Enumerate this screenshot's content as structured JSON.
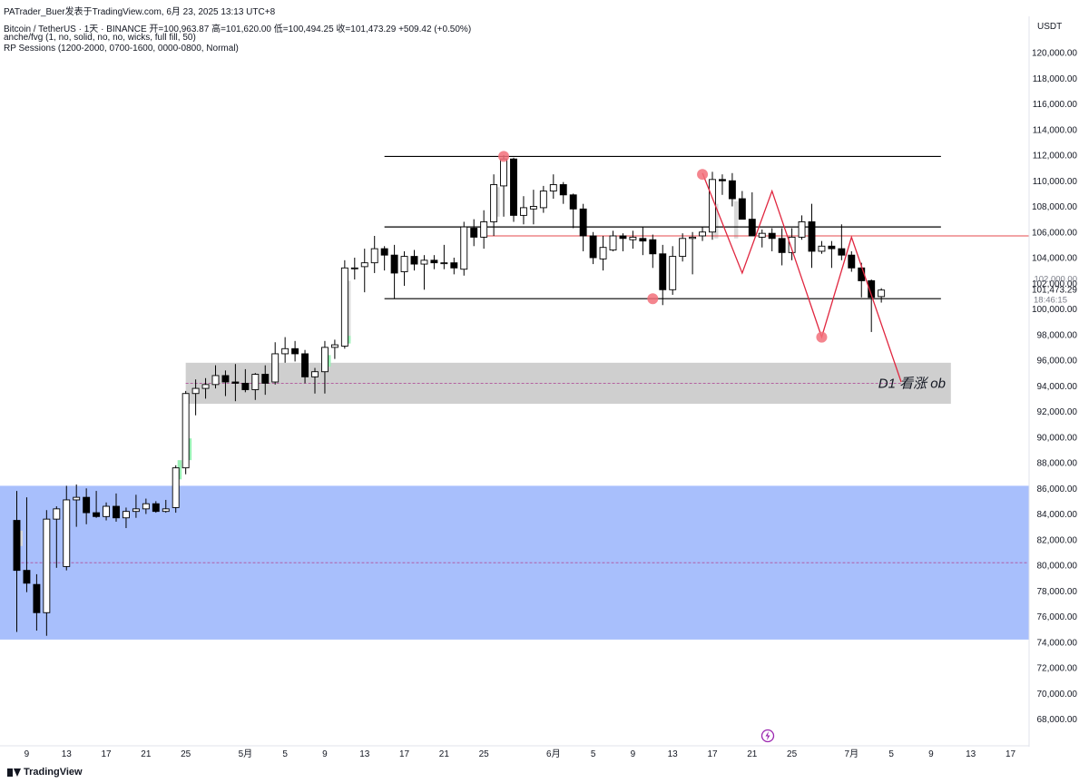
{
  "header": {
    "watermark": "PATrader_Buer发表于TradingView.com,   6月 23, 2025 13:13 UTC+8",
    "symbol_line": "Bitcoin / TetherUS · 1天 · BINANCE  开=100,963.87  高=101,620.00  低=100,494.25  收=101,473.29  +509.42 (+0.50%)",
    "indicator1": "anche/fvg (1, no, solid, no, no, wicks, full fill, 50)",
    "indicator2": "RP Sessions (1200-2000, 0700-1600, 0000-0800, Normal)"
  },
  "currency": "USDT",
  "footer": {
    "brand": "TradingView"
  },
  "colors": {
    "up_body": "#ffffff",
    "down_body": "#000000",
    "line": "#000000",
    "red_line": "#e5484d",
    "zigzag": "#e0263f",
    "marker": "#f2707a",
    "blue_zone": "#a8bffc",
    "gray_zone": "#cfcfcf",
    "fvg_green": "#98f0b4",
    "fvg_gray": "#d8d8d8",
    "price_label": "#131722"
  },
  "chart_data": {
    "type": "candlestick",
    "ylim": [
      66000,
      122000
    ],
    "y_ticks": [
      68000,
      70000,
      72000,
      74000,
      76000,
      78000,
      80000,
      82000,
      84000,
      86000,
      88000,
      90000,
      92000,
      94000,
      96000,
      98000,
      100000,
      102000,
      104000,
      106000,
      108000,
      110000,
      112000,
      114000,
      116000,
      118000,
      120000
    ],
    "y_tick_labels": [
      "68,000.00",
      "70,000.00",
      "72,000.00",
      "74,000.00",
      "76,000.00",
      "78,000.00",
      "80,000.00",
      "82,000.00",
      "84,000.00",
      "86,000.00",
      "88,000.00",
      "90,000.00",
      "92,000.00",
      "94,000.00",
      "96,000.00",
      "98,000.00",
      "100,000.00",
      "102,000.00",
      "104,000.00",
      "106,000.00",
      "108,000.00",
      "110,000.00",
      "112,000.00",
      "114,000.00",
      "116,000.00",
      "118,000.00",
      "120,000.00"
    ],
    "x_ticks": [
      {
        "label": "9",
        "day": 1
      },
      {
        "label": "13",
        "day": 5
      },
      {
        "label": "17",
        "day": 9
      },
      {
        "label": "21",
        "day": 13
      },
      {
        "label": "25",
        "day": 17
      },
      {
        "label": "5月",
        "day": 23
      },
      {
        "label": "5",
        "day": 27
      },
      {
        "label": "9",
        "day": 31
      },
      {
        "label": "13",
        "day": 35
      },
      {
        "label": "17",
        "day": 39
      },
      {
        "label": "21",
        "day": 43
      },
      {
        "label": "25",
        "day": 47
      },
      {
        "label": "6月",
        "day": 54
      },
      {
        "label": "5",
        "day": 58
      },
      {
        "label": "9",
        "day": 62
      },
      {
        "label": "13",
        "day": 66
      },
      {
        "label": "17",
        "day": 70
      },
      {
        "label": "21",
        "day": 74
      },
      {
        "label": "25",
        "day": 78
      },
      {
        "label": "7月",
        "day": 84
      },
      {
        "label": "5",
        "day": 88
      },
      {
        "label": "9",
        "day": 92
      },
      {
        "label": "13",
        "day": 96
      },
      {
        "label": "17",
        "day": 100
      }
    ],
    "candles": [
      [
        83500,
        85800,
        74800,
        79600
      ],
      [
        79600,
        85300,
        77900,
        78600
      ],
      [
        78500,
        79300,
        74900,
        76300
      ],
      [
        76300,
        84300,
        74500,
        83600
      ],
      [
        83600,
        84600,
        79800,
        84400
      ],
      [
        79900,
        86200,
        79600,
        85100
      ],
      [
        85100,
        86300,
        83000,
        85300
      ],
      [
        85300,
        86000,
        83200,
        84100
      ],
      [
        84100,
        85800,
        83700,
        83800
      ],
      [
        83800,
        84900,
        83500,
        84600
      ],
      [
        84600,
        85600,
        83400,
        83700
      ],
      [
        83700,
        84500,
        82900,
        84200
      ],
      [
        84200,
        85500,
        83700,
        84400
      ],
      [
        84400,
        85200,
        84000,
        84800
      ],
      [
        84800,
        85000,
        84100,
        84200
      ],
      [
        84200,
        85100,
        84100,
        84400
      ],
      [
        84500,
        87800,
        84100,
        87600
      ],
      [
        87600,
        93600,
        87100,
        93400
      ],
      [
        93400,
        94500,
        91700,
        93800
      ],
      [
        93800,
        94600,
        93000,
        94100
      ],
      [
        94100,
        95600,
        93800,
        94800
      ],
      [
        94800,
        95200,
        93200,
        94300
      ],
      [
        94300,
        95700,
        92800,
        94200
      ],
      [
        94200,
        95300,
        93500,
        93700
      ],
      [
        93700,
        95000,
        92900,
        94900
      ],
      [
        94900,
        95600,
        93300,
        94200
      ],
      [
        94300,
        97400,
        94100,
        96500
      ],
      [
        96500,
        97800,
        95800,
        96900
      ],
      [
        96900,
        97500,
        95900,
        96500
      ],
      [
        96500,
        96800,
        94200,
        94700
      ],
      [
        94700,
        95400,
        93400,
        95100
      ],
      [
        95100,
        97500,
        93400,
        97000
      ],
      [
        97000,
        97600,
        96100,
        97200
      ],
      [
        97100,
        103800,
        96900,
        103200
      ],
      [
        103200,
        104000,
        102300,
        103200
      ],
      [
        103300,
        104700,
        101300,
        103600
      ],
      [
        103600,
        105700,
        102800,
        104700
      ],
      [
        104700,
        104900,
        103000,
        104200
      ],
      [
        104200,
        105000,
        100800,
        102800
      ],
      [
        102900,
        104500,
        101800,
        104100
      ],
      [
        104100,
        104600,
        103000,
        103500
      ],
      [
        103500,
        104200,
        101500,
        103800
      ],
      [
        103800,
        104200,
        103100,
        103600
      ],
      [
        103600,
        105000,
        103100,
        103600
      ],
      [
        103600,
        104000,
        102700,
        103200
      ],
      [
        103100,
        106800,
        102600,
        106400
      ],
      [
        106300,
        107000,
        104900,
        105600
      ],
      [
        105600,
        107700,
        104700,
        106800
      ],
      [
        106800,
        110500,
        105700,
        109700
      ],
      [
        109600,
        112000,
        107200,
        111700
      ],
      [
        111700,
        111800,
        106800,
        107300
      ],
      [
        107300,
        108800,
        106600,
        107900
      ],
      [
        107800,
        109300,
        106600,
        108000
      ],
      [
        107900,
        109600,
        107500,
        109200
      ],
      [
        109200,
        110500,
        108600,
        109700
      ],
      [
        109700,
        109900,
        108200,
        108900
      ],
      [
        108900,
        109000,
        106300,
        107800
      ],
      [
        107800,
        108200,
        104500,
        105700
      ],
      [
        105700,
        106000,
        103500,
        104000
      ],
      [
        103900,
        105700,
        103000,
        104800
      ],
      [
        104600,
        106100,
        104500,
        105700
      ],
      [
        105700,
        105900,
        104500,
        105500
      ],
      [
        105400,
        106100,
        104700,
        105600
      ],
      [
        105500,
        106400,
        104200,
        105300
      ],
      [
        105400,
        105800,
        103200,
        104300
      ],
      [
        104300,
        105000,
        100300,
        101500
      ],
      [
        101500,
        104900,
        101100,
        104100
      ],
      [
        104100,
        105900,
        103700,
        105500
      ],
      [
        105500,
        106000,
        102700,
        105600
      ],
      [
        105700,
        106400,
        105300,
        106000
      ],
      [
        106000,
        110700,
        105400,
        110100
      ],
      [
        110100,
        110500,
        108900,
        110000
      ],
      [
        110000,
        110600,
        108000,
        108600
      ],
      [
        108600,
        109200,
        107200,
        107000
      ],
      [
        107000,
        109100,
        106100,
        105700
      ],
      [
        105600,
        106200,
        104800,
        105900
      ],
      [
        105900,
        106300,
        104500,
        105500
      ],
      [
        105500,
        106300,
        103400,
        104400
      ],
      [
        104400,
        106300,
        103800,
        105600
      ],
      [
        105600,
        107300,
        105400,
        106800
      ],
      [
        106800,
        108200,
        103200,
        104500
      ],
      [
        104500,
        105300,
        104300,
        104900
      ],
      [
        104900,
        105300,
        103200,
        104700
      ],
      [
        104700,
        106600,
        103800,
        104200
      ],
      [
        104200,
        104500,
        102900,
        103200
      ],
      [
        103200,
        103600,
        100900,
        102200
      ],
      [
        102200,
        102300,
        98200,
        100900
      ],
      [
        100964,
        101620,
        100494,
        101473
      ]
    ],
    "horizontal_lines": [
      {
        "price": 111900,
        "from_day": 37,
        "to_day": 93
      },
      {
        "price": 106400,
        "from_day": 37,
        "to_day": 93
      },
      {
        "price": 100800,
        "from_day": 37,
        "to_day": 93
      }
    ],
    "red_level": {
      "price": 105700,
      "from_day": 47
    },
    "zones": [
      {
        "name": "blue",
        "low": 74200,
        "high": 86200,
        "from_day": -2
      },
      {
        "name": "gray",
        "low": 92600,
        "high": 95800,
        "from_day": 17,
        "to_day": 94,
        "label": "D1 看涨 ob"
      }
    ],
    "dashed_mids": [
      {
        "price": 80200,
        "from_day": 0,
        "to_day": 110
      },
      {
        "price": 94200,
        "from_day": 17,
        "to_day": 89
      }
    ],
    "fvg_marks": [
      {
        "day": 0,
        "low": 81500,
        "high": 82700,
        "color": "gray"
      },
      {
        "day": 17,
        "low": 88200,
        "high": 89900,
        "color": "green"
      },
      {
        "day": 16,
        "low": 86700,
        "high": 88200,
        "color": "green"
      },
      {
        "day": 33,
        "low": 97500,
        "high": 102200,
        "color": "gray"
      },
      {
        "day": 33,
        "low": 97300,
        "high": 97900,
        "color": "green"
      },
      {
        "day": 31,
        "low": 95500,
        "high": 96400,
        "color": "green"
      },
      {
        "day": 48,
        "low": 107200,
        "high": 109500,
        "color": "gray"
      },
      {
        "day": 70,
        "low": 105500,
        "high": 108200,
        "color": "gray"
      },
      {
        "day": 72,
        "low": 105500,
        "high": 108400,
        "color": "gray"
      }
    ],
    "markers": [
      {
        "day": 49,
        "price": 111900
      },
      {
        "day": 64,
        "price": 100800
      },
      {
        "day": 69,
        "price": 110500
      },
      {
        "day": 81,
        "price": 97800
      }
    ],
    "zigzag": [
      {
        "day": 69,
        "price": 110600
      },
      {
        "day": 73,
        "price": 102800
      },
      {
        "day": 76,
        "price": 109200
      },
      {
        "day": 81,
        "price": 97800
      },
      {
        "day": 84,
        "price": 105600
      },
      {
        "day": 89,
        "price": 94300
      }
    ],
    "last_price": {
      "label": "101,473.29",
      "countdown": "18:46:15",
      "price": 101473
    },
    "price_above_label": {
      "label": "102,000.00"
    }
  }
}
